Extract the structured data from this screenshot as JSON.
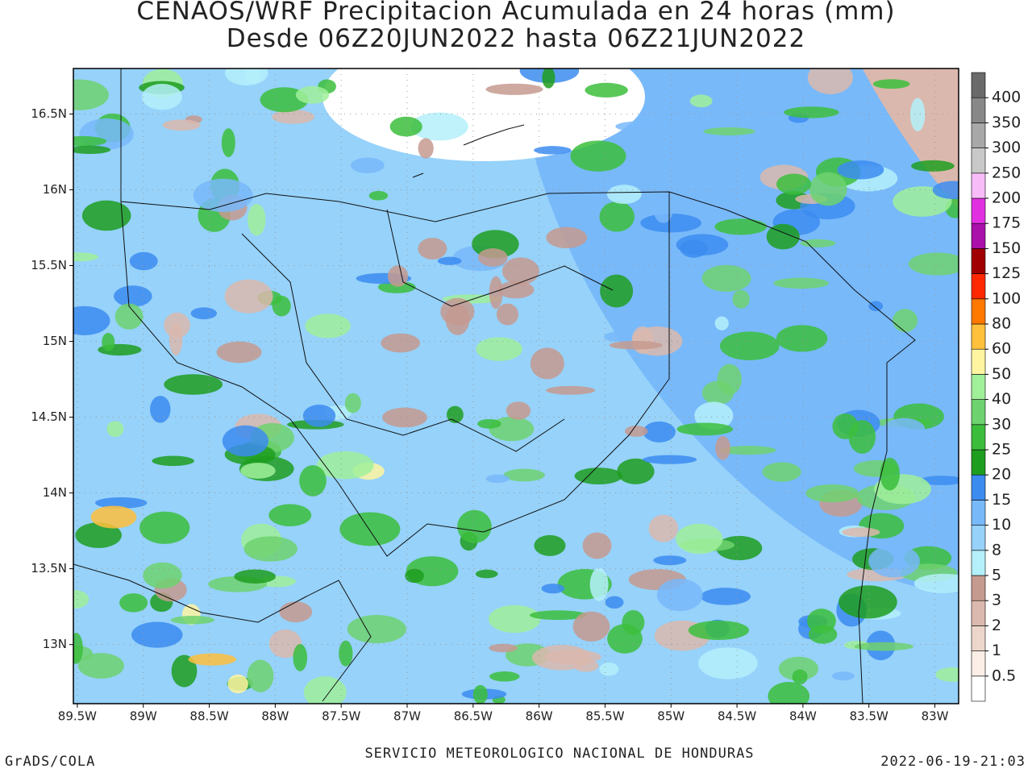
{
  "header": {
    "title": "CENAOS/WRF Precipitacion Acumulada en 24 horas (mm)",
    "subtitle": "Desde 06Z20JUN2022 hasta 06Z21JUN2022"
  },
  "map": {
    "xlim": [
      -89.53,
      -82.82
    ],
    "ylim": [
      12.61,
      16.8
    ],
    "grid": true,
    "xticks": [
      {
        "value": -89.5,
        "label": "89.5W"
      },
      {
        "value": -89,
        "label": "89W"
      },
      {
        "value": -88.5,
        "label": "88.5W"
      },
      {
        "value": -88,
        "label": "88W"
      },
      {
        "value": -87.5,
        "label": "87.5W"
      },
      {
        "value": -87,
        "label": "87W"
      },
      {
        "value": -86.5,
        "label": "86.5W"
      },
      {
        "value": -86,
        "label": "86W"
      },
      {
        "value": -85.5,
        "label": "85.5W"
      },
      {
        "value": -85,
        "label": "85W"
      },
      {
        "value": -84.5,
        "label": "84.5W"
      },
      {
        "value": -84,
        "label": "84W"
      },
      {
        "value": -83.5,
        "label": "83.5W"
      },
      {
        "value": -83,
        "label": "83W"
      }
    ],
    "yticks": [
      {
        "value": 13,
        "label": "13N"
      },
      {
        "value": 13.5,
        "label": "13.5N"
      },
      {
        "value": 14,
        "label": "14N"
      },
      {
        "value": 14.5,
        "label": "14.5N"
      },
      {
        "value": 15,
        "label": "15N"
      },
      {
        "value": 15.5,
        "label": "15.5N"
      },
      {
        "value": 16,
        "label": "16N"
      },
      {
        "value": 16.5,
        "label": "16.5N"
      }
    ]
  },
  "colorbar": {
    "levels": [
      0.5,
      1,
      2,
      3,
      5,
      8,
      10,
      15,
      20,
      25,
      30,
      40,
      50,
      60,
      80,
      100,
      125,
      150,
      175,
      200,
      250,
      300,
      350,
      400
    ],
    "colors": [
      "#ffffff",
      "#fbeee6",
      "#ecd6cc",
      "#dbb8ad",
      "#c59a8f",
      "#b4f0fa",
      "#96d2fa",
      "#78b9fa",
      "#3c8cf0",
      "#1e9e1e",
      "#3cbe3c",
      "#6ed26e",
      "#a0f09a",
      "#fff5a0",
      "#ffc03c",
      "#ff7800",
      "#ff2800",
      "#a00000",
      "#aa10aa",
      "#e030e0",
      "#f8bcf8",
      "#c8c8c8",
      "#a8a8a8",
      "#888888",
      "#6a6a6a"
    ]
  },
  "footer": {
    "left": "GrADS/COLA",
    "center": "SERVICIO METEOROLOGICO NACIONAL DE HONDURAS",
    "right": "2022-06-19-21:03"
  }
}
